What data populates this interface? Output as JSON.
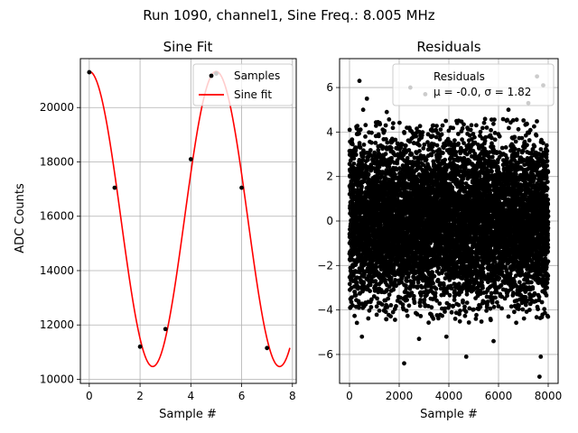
{
  "figure": {
    "suptitle": "Run 1090, channel1, Sine Freq.: 8.005 MHz"
  },
  "chart_data": [
    {
      "type": "line",
      "title": "Sine Fit",
      "xlabel": "Sample #",
      "ylabel": "ADC Counts",
      "xlim": [
        -0.35,
        8.15
      ],
      "ylim": [
        9850,
        21800
      ],
      "xticks": [
        0,
        2,
        4,
        6,
        8
      ],
      "yticks": [
        10000,
        12000,
        14000,
        16000,
        18000,
        20000
      ],
      "grid": true,
      "legend": {
        "position": "top-right",
        "entries": [
          "Samples",
          "Sine fit"
        ]
      },
      "series": [
        {
          "name": "Samples",
          "kind": "scatter",
          "color": "#000000",
          "x": [
            0,
            1,
            2,
            3,
            4,
            5,
            6,
            7
          ],
          "y": [
            21300,
            17050,
            11200,
            11850,
            18100,
            21250,
            17050,
            11150
          ]
        },
        {
          "name": "Sine fit",
          "kind": "line",
          "color": "#ff0000",
          "fit": {
            "amplitude": 5430,
            "offset": 15900,
            "period": 4.997,
            "phase_x": 0,
            "x_range": [
              0,
              7.9
            ]
          }
        }
      ]
    },
    {
      "type": "scatter",
      "title": "Residuals",
      "xlabel": "Sample #",
      "ylabel": "",
      "xlim": [
        -400,
        8400
      ],
      "ylim": [
        -7.3,
        7.3
      ],
      "xticks": [
        0,
        2000,
        4000,
        6000,
        8000
      ],
      "yticks": [
        -6,
        -4,
        -2,
        0,
        2,
        4,
        6
      ],
      "grid": true,
      "color": "#000000",
      "legend": {
        "position": "top-right",
        "entries": [
          "Residuals",
          "μ = -0.0, σ = 1.82"
        ]
      },
      "n_points": 8000,
      "stats": {
        "mean": -0.0,
        "sigma": 1.82
      },
      "outliers": [
        [
          400,
          6.3
        ],
        [
          550,
          5.0
        ],
        [
          700,
          5.5
        ],
        [
          2450,
          6.0
        ],
        [
          3050,
          5.7
        ],
        [
          7550,
          6.5
        ],
        [
          7800,
          6.1
        ],
        [
          2200,
          -6.4
        ],
        [
          4700,
          -6.1
        ],
        [
          5800,
          -5.4
        ],
        [
          7650,
          -7.0
        ],
        [
          7700,
          -6.1
        ],
        [
          500,
          -5.2
        ],
        [
          3900,
          -5.2
        ],
        [
          1500,
          4.9
        ],
        [
          6400,
          5.0
        ],
        [
          2800,
          -5.3
        ],
        [
          7200,
          5.3
        ]
      ]
    }
  ]
}
